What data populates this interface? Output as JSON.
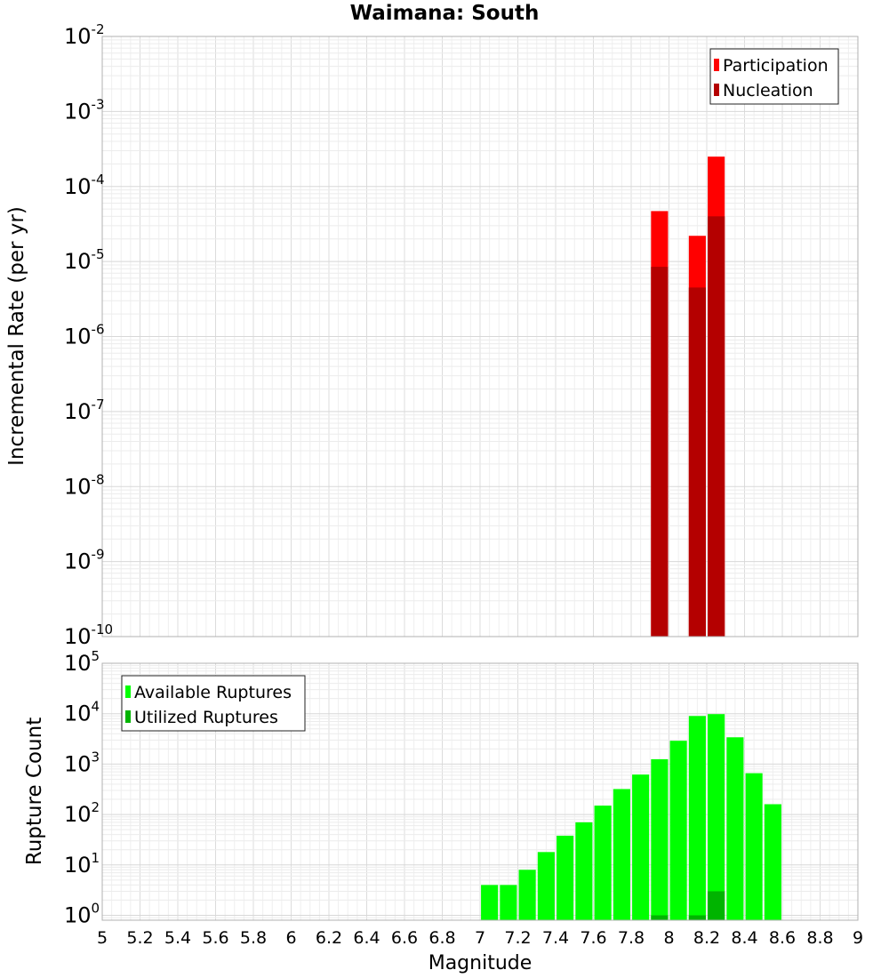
{
  "chart_data": [
    {
      "type": "bar",
      "title": "Waimana: South",
      "xlabel": "",
      "ylabel": "Incremental Rate (per yr)",
      "yscale": "log",
      "xlim": [
        5,
        9
      ],
      "ylim": [
        1e-10,
        0.01
      ],
      "grid": true,
      "legend_position": "top-right",
      "series": [
        {
          "name": "Participation",
          "color": "#ff0000",
          "x": [
            7.95,
            8.15,
            8.25
          ],
          "values": [
            4.7e-05,
            2.2e-05,
            0.00025
          ]
        },
        {
          "name": "Nucleation",
          "color": "#b40000",
          "x": [
            7.95,
            8.15,
            8.25
          ],
          "values": [
            8.5e-06,
            4.5e-06,
            4e-05
          ]
        }
      ]
    },
    {
      "type": "bar",
      "title": "",
      "xlabel": "Magnitude",
      "ylabel": "Rupture Count",
      "yscale": "log",
      "xlim": [
        5,
        9
      ],
      "ylim": [
        0.8,
        100000
      ],
      "grid": true,
      "legend_position": "top-left",
      "x_ticks": [
        "5",
        "5.2",
        "5.4",
        "5.6",
        "5.8",
        "6",
        "6.2",
        "6.4",
        "6.6",
        "6.8",
        "7",
        "7.2",
        "7.4",
        "7.6",
        "7.8",
        "8",
        "8.2",
        "8.4",
        "8.6",
        "8.8",
        "9"
      ],
      "series": [
        {
          "name": "Available Ruptures",
          "color": "#00ff00",
          "x": [
            7.05,
            7.15,
            7.25,
            7.35,
            7.45,
            7.55,
            7.65,
            7.75,
            7.85,
            7.95,
            8.05,
            8.15,
            8.25,
            8.35,
            8.45,
            8.55
          ],
          "values": [
            4,
            4,
            8,
            18,
            38,
            70,
            150,
            320,
            620,
            1250,
            2900,
            9000,
            9800,
            3400,
            660,
            160
          ]
        },
        {
          "name": "Utilized Ruptures",
          "color": "#00b400",
          "x": [
            7.95,
            8.15,
            8.25
          ],
          "values": [
            1,
            1,
            3
          ]
        }
      ]
    }
  ]
}
